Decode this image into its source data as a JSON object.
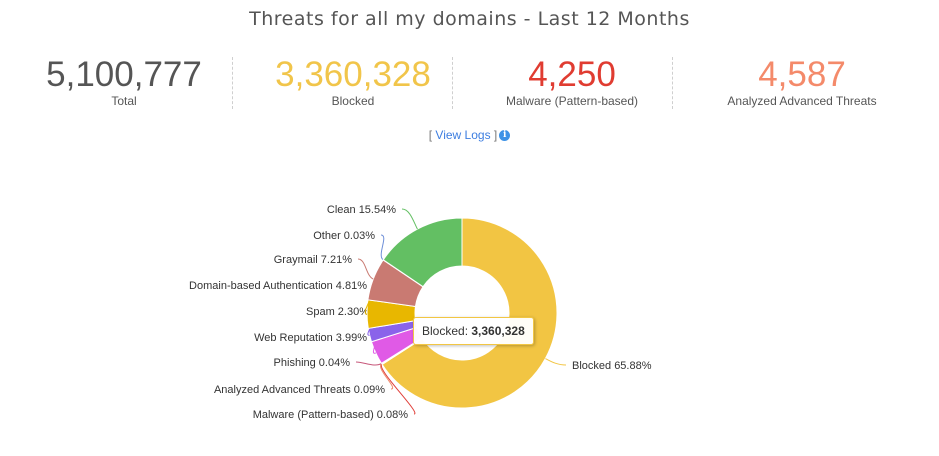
{
  "page": {
    "title": "Threats for all my domains - Last 12 Months"
  },
  "stats": [
    {
      "value": "5,100,777",
      "label": "Total",
      "color": "#555555"
    },
    {
      "value": "3,360,328",
      "label": "Blocked",
      "color": "#f1c54a"
    },
    {
      "value": "4,250",
      "label": "Malware (Pattern-based)",
      "color": "#e03c31"
    },
    {
      "value": "4,587",
      "label": "Analyzed Advanced Threats",
      "color": "#f48a6a"
    }
  ],
  "view_logs": {
    "open": "[",
    "label": "View Logs",
    "close": "]",
    "icon": "info-icon"
  },
  "tooltip": {
    "label": "Blocked:",
    "value": "3,360,328"
  },
  "chart_data": {
    "type": "pie",
    "donut": true,
    "legend": "none",
    "slices": [
      {
        "name": "Blocked",
        "value": 65.88,
        "label": "Blocked 65.88%",
        "color": "#f2c543"
      },
      {
        "name": "Malware (Pattern-based)",
        "value": 0.08,
        "label": "Malware (Pattern-based) 0.08%",
        "color": "#e0403a"
      },
      {
        "name": "Analyzed Advanced Threats",
        "value": 0.09,
        "label": "Analyzed Advanced Threats 0.09%",
        "color": "#f08b6c"
      },
      {
        "name": "Phishing",
        "value": 0.04,
        "label": "Phishing 0.04%",
        "color": "#c7577a"
      },
      {
        "name": "Web Reputation",
        "value": 3.99,
        "label": "Web Reputation 3.99%",
        "color": "#e05ae6"
      },
      {
        "name": "Spam",
        "value": 2.3,
        "label": "Spam 2.30%",
        "color": "#8a63ea"
      },
      {
        "name": "Domain-based Authentication",
        "value": 4.81,
        "label": "Domain-based Authentication 4.81%",
        "color": "#e8b700"
      },
      {
        "name": "Graymail",
        "value": 7.21,
        "label": "Graymail 7.21%",
        "color": "#c97a72"
      },
      {
        "name": "Other",
        "value": 0.03,
        "label": "Other 0.03%",
        "color": "#6e8fd8"
      },
      {
        "name": "Clean",
        "value": 15.54,
        "label": "Clean 15.54%",
        "color": "#63bf63"
      }
    ]
  }
}
